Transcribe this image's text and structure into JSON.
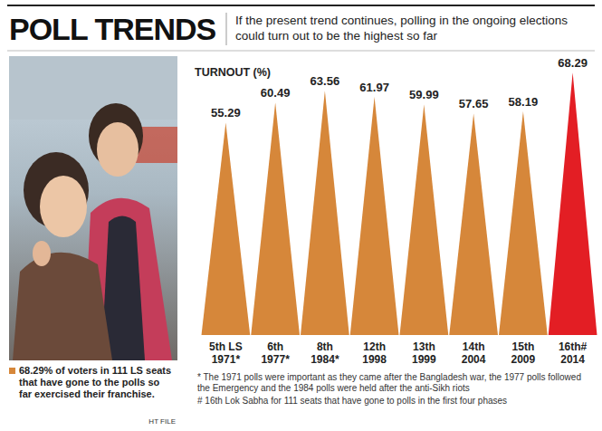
{
  "chart_data": {
    "type": "spike",
    "title": "POLL TRENDS",
    "subtitle": "If the present trend continues, polling in the ongoing elections could turn out to be the highest so far",
    "y_label": "TURNOUT (%)",
    "categories": [
      "5th LS\n1971*",
      "6th\n1977*",
      "8th\n1984*",
      "12th\n1998",
      "13th\n1999",
      "14th\n2004",
      "15th\n2009",
      "16th#\n2014"
    ],
    "values": [
      55.29,
      60.49,
      63.56,
      61.97,
      59.99,
      57.65,
      58.19,
      68.29
    ],
    "colors": [
      "#d6873a",
      "#d6873a",
      "#d6873a",
      "#d6873a",
      "#d6873a",
      "#d6873a",
      "#d6873a",
      "#e31e24"
    ],
    "ylim": [
      0,
      70
    ],
    "yticks": [],
    "tick_labels": "x",
    "data_labels": true,
    "note": "68.29% of voters in 111 LS seats that have gone to the polls so far exercised their franchise.",
    "source": "HT FILE",
    "footnotes": [
      "* The 1971 polls were important as they came after the Bangladesh war, the 1977 polls followed the Emergency and the 1984 polls were held after the anti-Sikh riots",
      "# 16th Lok Sabha for 111 seats that have gone to polls in the first four phases"
    ]
  }
}
